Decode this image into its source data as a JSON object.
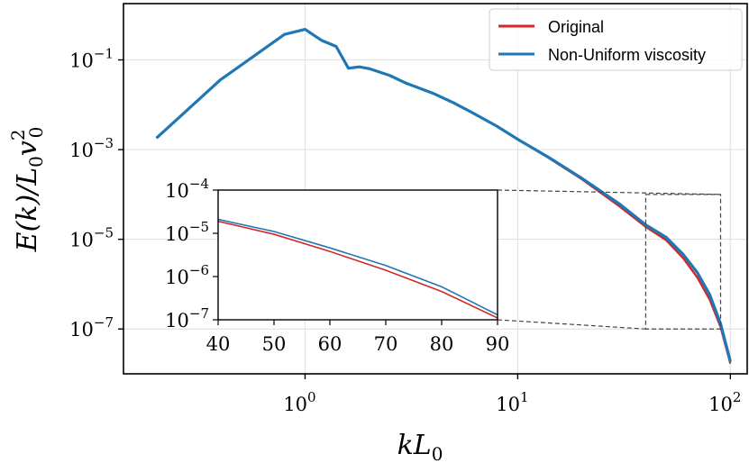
{
  "chart_data": {
    "type": "line",
    "xscale": "log",
    "yscale": "log",
    "xlim": [
      0.14,
      120
    ],
    "ylim": [
      1e-08,
      1.8
    ],
    "xlabel": "kL",
    "xlabel_sub": "0",
    "ylabel": "E(k)/L",
    "ylabel_parts": {
      "e": "E(k)/L",
      "sub0": "0",
      "v": "v",
      "sup": "2",
      "vsub": "0"
    },
    "grid": true,
    "legend_position": "top-right",
    "x_ticks": [
      {
        "value": 1,
        "base": "10",
        "exp": "0"
      },
      {
        "value": 10,
        "base": "10",
        "exp": "1"
      },
      {
        "value": 100,
        "base": "10",
        "exp": "2"
      }
    ],
    "y_ticks": [
      {
        "value": 0.1,
        "base": "10",
        "exp": "−1"
      },
      {
        "value": 0.001,
        "base": "10",
        "exp": "−3"
      },
      {
        "value": 1e-05,
        "base": "10",
        "exp": "−5"
      },
      {
        "value": 1e-07,
        "base": "10",
        "exp": "−7"
      }
    ],
    "series": [
      {
        "name": "Original",
        "color": "#d62728",
        "points": [
          [
            0.2,
            0.0018
          ],
          [
            0.4,
            0.036
          ],
          [
            0.8,
            0.37
          ],
          [
            1.0,
            0.48
          ],
          [
            1.2,
            0.27
          ],
          [
            1.4,
            0.2
          ],
          [
            1.6,
            0.065
          ],
          [
            1.8,
            0.07
          ],
          [
            2.0,
            0.064
          ],
          [
            2.5,
            0.045
          ],
          [
            3.0,
            0.03
          ],
          [
            4.0,
            0.018
          ],
          [
            5.0,
            0.011
          ],
          [
            6.0,
            0.007
          ],
          [
            8.0,
            0.0033
          ],
          [
            10.0,
            0.0017
          ],
          [
            14.0,
            0.00065
          ],
          [
            20.0,
            0.00022
          ],
          [
            30.0,
            5.5e-05
          ],
          [
            40.0,
            1.9e-05
          ],
          [
            50.0,
            9.5e-06
          ],
          [
            60.0,
            3.8e-06
          ],
          [
            70.0,
            1.4e-06
          ],
          [
            80.0,
            4.5e-07
          ],
          [
            90.0,
            1.1e-07
          ],
          [
            100.0,
            1.7e-08
          ]
        ]
      },
      {
        "name": "Non-Uniform viscosity",
        "color": "#1f77b4",
        "points": [
          [
            0.2,
            0.0018
          ],
          [
            0.4,
            0.036
          ],
          [
            0.8,
            0.37
          ],
          [
            1.0,
            0.48
          ],
          [
            1.2,
            0.27
          ],
          [
            1.4,
            0.2
          ],
          [
            1.6,
            0.065
          ],
          [
            1.8,
            0.07
          ],
          [
            2.0,
            0.064
          ],
          [
            2.5,
            0.045
          ],
          [
            3.0,
            0.03
          ],
          [
            4.0,
            0.018
          ],
          [
            5.0,
            0.011
          ],
          [
            6.0,
            0.007
          ],
          [
            8.0,
            0.0033
          ],
          [
            10.0,
            0.0017
          ],
          [
            14.0,
            0.00067
          ],
          [
            20.0,
            0.00023
          ],
          [
            30.0,
            6.2e-05
          ],
          [
            40.0,
            2.1e-05
          ],
          [
            50.0,
            1.1e-05
          ],
          [
            60.0,
            4.6e-06
          ],
          [
            70.0,
            1.8e-06
          ],
          [
            80.0,
            5.8e-07
          ],
          [
            90.0,
            1.3e-07
          ],
          [
            100.0,
            1.9e-08
          ]
        ]
      }
    ],
    "inset": {
      "xscale": "linear",
      "yscale": "log",
      "xlim": [
        40,
        90
      ],
      "ylim": [
        1e-07,
        0.0001
      ],
      "x_ticks": [
        "40",
        "50",
        "60",
        "70",
        "80",
        "90"
      ],
      "y_ticks": [
        {
          "value": 0.0001,
          "base": "10",
          "exp": "−4"
        },
        {
          "value": 1e-05,
          "base": "10",
          "exp": "−5"
        },
        {
          "value": 1e-06,
          "base": "10",
          "exp": "−6"
        },
        {
          "value": 1e-07,
          "base": "10",
          "exp": "−7"
        }
      ]
    }
  }
}
